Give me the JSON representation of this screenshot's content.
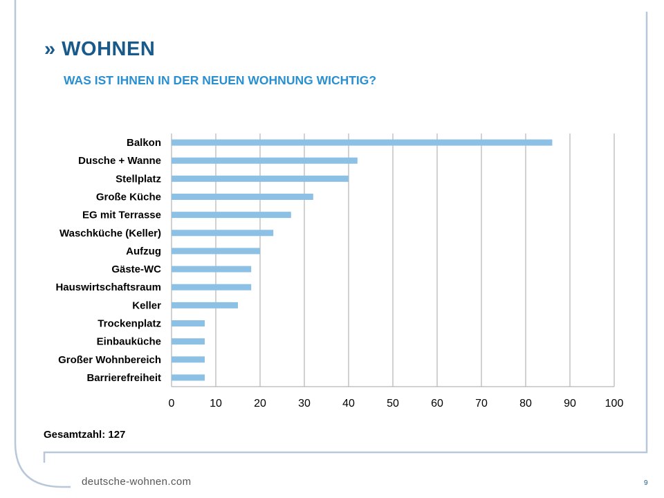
{
  "header": {
    "title": "» WOHNEN",
    "subtitle": "WAS IST IHNEN IN DER NEUEN WOHNUNG WICHTIG?"
  },
  "chart_data": {
    "type": "bar",
    "orientation": "horizontal",
    "title": "WAS IST IHNEN IN DER NEUEN WOHNUNG WICHTIG?",
    "xlabel": "",
    "ylabel": "",
    "xlim": [
      0,
      100
    ],
    "x_ticks": [
      0,
      10,
      20,
      30,
      40,
      50,
      60,
      70,
      80,
      90,
      100
    ],
    "grid": true,
    "categories": [
      "Balkon",
      "Dusche + Wanne",
      "Stellplatz",
      "Große Küche",
      "EG mit Terrasse",
      "Waschküche (Keller)",
      "Aufzug",
      "Gäste-WC",
      "Hauswirtschaftsraum",
      "Keller",
      "Trockenplatz",
      "Einbauküche",
      "Großer Wohnbereich",
      "Barrierefreiheit"
    ],
    "values": [
      86,
      42,
      40,
      32,
      27,
      23,
      20,
      18,
      18,
      15,
      7.5,
      7.5,
      7.5,
      7.5
    ],
    "bar_color": "#8cc0e4"
  },
  "footer": {
    "total_text": "Gesamtzahl: 127",
    "url": "deutsche-wohnen.com",
    "page_number": "9"
  },
  "colors": {
    "frame": "#b8c8da",
    "title": "#1a5a8a",
    "subtitle": "#2a8fd0",
    "grid": "#a6a6a6"
  }
}
